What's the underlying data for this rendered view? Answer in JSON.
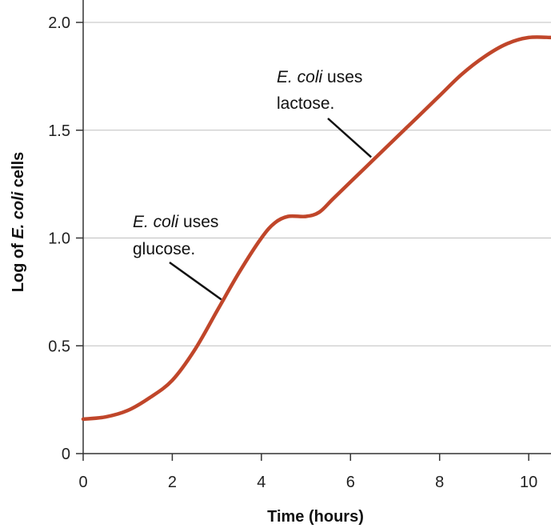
{
  "chart_data": {
    "type": "line",
    "xlabel": "Time (hours)",
    "ylabel_parts": [
      "Log of ",
      "E. coli",
      " cells"
    ],
    "xlim": [
      0,
      10.5
    ],
    "ylim": [
      0,
      2.0
    ],
    "x_ticks": [
      0,
      2,
      4,
      6,
      8,
      10
    ],
    "x_tick_labels": [
      "0",
      "2",
      "4",
      "6",
      "8",
      "10"
    ],
    "y_ticks": [
      0,
      0.5,
      1.0,
      1.5,
      2.0
    ],
    "y_tick_labels": [
      "0",
      "0.5",
      "1.0",
      "1.5",
      "2.0"
    ],
    "grid": "horizontal",
    "line_color": "#c0462a",
    "series": [
      {
        "x": [
          0,
          0.5,
          1.0,
          1.5,
          2.0,
          2.5,
          3.0,
          3.5,
          4.0,
          4.3,
          4.6,
          5.0,
          5.3,
          5.6,
          6.0,
          6.5,
          7.0,
          7.5,
          8.0,
          8.5,
          9.0,
          9.5,
          10.0,
          10.5
        ],
        "values": [
          0.16,
          0.17,
          0.2,
          0.26,
          0.34,
          0.48,
          0.66,
          0.84,
          1.0,
          1.07,
          1.1,
          1.1,
          1.12,
          1.18,
          1.26,
          1.36,
          1.46,
          1.56,
          1.66,
          1.76,
          1.84,
          1.9,
          1.93,
          1.93
        ]
      }
    ],
    "annotations": [
      {
        "italic": "E. coli",
        "rest": " uses",
        "line2": "glucose.",
        "x": 3.1,
        "y": 0.7
      },
      {
        "italic": "E. coli",
        "rest": " uses",
        "line2": "lactose.",
        "x": 6.5,
        "y": 1.36
      }
    ]
  }
}
